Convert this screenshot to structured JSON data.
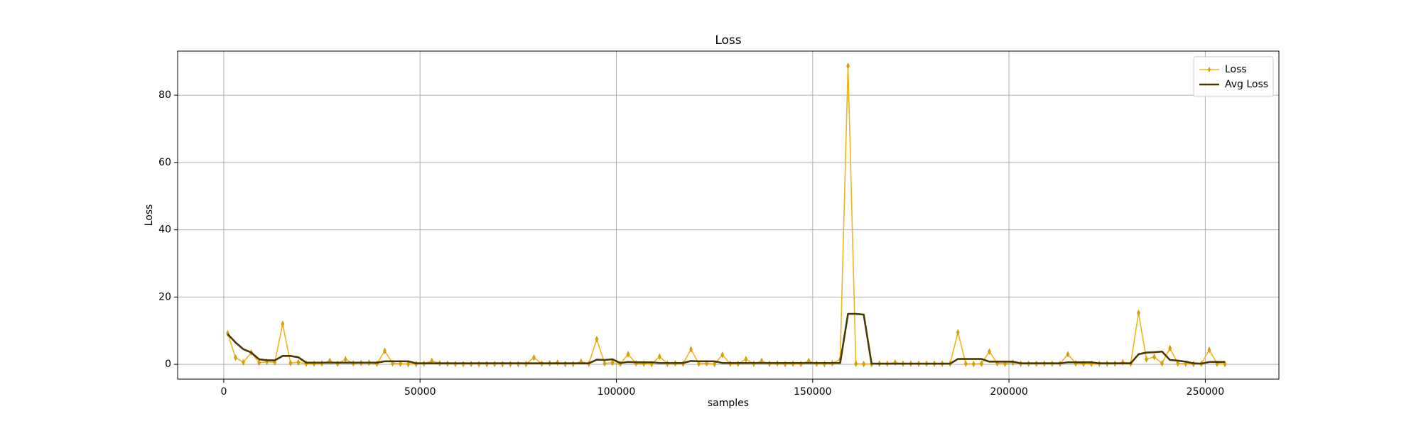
{
  "chart_data": {
    "type": "line",
    "title": "Loss",
    "xlabel": "samples",
    "ylabel": "Loss",
    "x": [
      1000,
      3000,
      5000,
      7000,
      9000,
      11000,
      13000,
      15000,
      17000,
      19000,
      21000,
      23000,
      25000,
      27000,
      29000,
      31000,
      33000,
      35000,
      37000,
      39000,
      41000,
      43000,
      45000,
      47000,
      49000,
      51000,
      53000,
      55000,
      57000,
      59000,
      61000,
      63000,
      65000,
      67000,
      69000,
      71000,
      73000,
      75000,
      77000,
      79000,
      81000,
      83000,
      85000,
      87000,
      89000,
      91000,
      93000,
      95000,
      97000,
      99000,
      101000,
      103000,
      105000,
      107000,
      109000,
      111000,
      113000,
      115000,
      117000,
      119000,
      121000,
      123000,
      125000,
      127000,
      129000,
      131000,
      133000,
      135000,
      137000,
      139000,
      141000,
      143000,
      145000,
      147000,
      149000,
      151000,
      153000,
      155000,
      157000,
      159000,
      161000,
      163000,
      165000,
      167000,
      169000,
      171000,
      173000,
      175000,
      177000,
      179000,
      181000,
      183000,
      185000,
      187000,
      189000,
      191000,
      193000,
      195000,
      197000,
      199000,
      201000,
      203000,
      205000,
      207000,
      209000,
      211000,
      213000,
      215000,
      217000,
      219000,
      221000,
      223000,
      225000,
      227000,
      229000,
      231000,
      233000,
      235000,
      237000,
      239000,
      241000,
      243000,
      245000,
      247000,
      249000,
      251000,
      253000,
      255000
    ],
    "series": [
      {
        "name": "Loss",
        "color": "#f0b41e",
        "marker": true,
        "values": [
          9.2,
          2,
          0.6,
          3.5,
          0.5,
          0.8,
          0.6,
          12,
          0.4,
          0.6,
          0.2,
          0.2,
          0.3,
          1,
          0.2,
          1.5,
          0.3,
          0.4,
          0.5,
          0.2,
          4,
          0.3,
          0.2,
          0.1,
          0.1,
          0.2,
          1,
          0.3,
          0.2,
          0.1,
          0.1,
          0.1,
          0.1,
          0.1,
          0.1,
          0.1,
          0.1,
          0.1,
          0.1,
          2,
          0.2,
          0.3,
          0.5,
          0.1,
          0.1,
          0.8,
          0.2,
          7.5,
          0.3,
          0.5,
          0.2,
          3,
          0.3,
          0.2,
          0.1,
          2.3,
          0.2,
          0.3,
          0.2,
          4.5,
          0.2,
          0.3,
          0.1,
          2.8,
          0.2,
          0.2,
          1.5,
          0.2,
          1,
          0.2,
          0.3,
          0.1,
          0.2,
          0.1,
          1,
          0.2,
          0.1,
          0.3,
          1.5,
          88.7,
          0.2,
          0.1,
          0.1,
          0.2,
          0.2,
          0.5,
          0.2,
          0.2,
          0.2,
          0.2,
          0.2,
          0.2,
          0.2,
          9.5,
          0.2,
          0.1,
          0.2,
          3.8,
          0.3,
          0.2,
          0.5,
          0.2,
          0.2,
          0.2,
          0.2,
          0.2,
          0.2,
          3,
          0.3,
          0.2,
          0.2,
          0.2,
          0.2,
          0.2,
          0.6,
          0.2,
          15.3,
          1.5,
          2.2,
          0.3,
          4.8,
          0.3,
          0.2,
          0.1,
          0.2,
          4.3,
          0.2,
          0.1
        ]
      },
      {
        "name": "Avg Loss",
        "color": "#4a3800",
        "marker": false,
        "values": [
          9,
          6.5,
          4.5,
          3.5,
          1.5,
          1.2,
          1.2,
          2.5,
          2.5,
          2.1,
          0.5,
          0.5,
          0.5,
          0.5,
          0.5,
          0.5,
          0.5,
          0.5,
          0.5,
          0.5,
          0.9,
          0.9,
          0.9,
          0.9,
          0.3,
          0.3,
          0.3,
          0.3,
          0.3,
          0.3,
          0.3,
          0.3,
          0.3,
          0.3,
          0.3,
          0.3,
          0.3,
          0.3,
          0.3,
          0.3,
          0.3,
          0.3,
          0.3,
          0.3,
          0.3,
          0.3,
          0.3,
          1.4,
          1.3,
          1.5,
          0.4,
          0.7,
          0.6,
          0.6,
          0.6,
          0.4,
          0.4,
          0.4,
          0.4,
          1,
          0.9,
          0.9,
          0.9,
          0.4,
          0.4,
          0.4,
          0.4,
          0.4,
          0.4,
          0.4,
          0.4,
          0.4,
          0.4,
          0.4,
          0.4,
          0.4,
          0.4,
          0.4,
          0.4,
          15,
          15,
          14.8,
          0.2,
          0.2,
          0.2,
          0.2,
          0.2,
          0.2,
          0.2,
          0.2,
          0.2,
          0.2,
          0.2,
          1.6,
          1.6,
          1.6,
          1.6,
          0.8,
          0.8,
          0.8,
          0.8,
          0.3,
          0.3,
          0.3,
          0.3,
          0.3,
          0.3,
          0.6,
          0.6,
          0.6,
          0.6,
          0.3,
          0.3,
          0.3,
          0.3,
          0.3,
          3,
          3.5,
          3.6,
          3.8,
          1.3,
          1.1,
          0.8,
          0.3,
          0.2,
          0.7,
          0.7,
          0.7
        ]
      }
    ],
    "xlim": [
      -11750,
      268750
    ],
    "xticks": [
      0,
      50000,
      100000,
      150000,
      200000,
      250000
    ],
    "ylim": [
      -4.4,
      93.1
    ],
    "yticks": [
      0,
      20,
      40,
      60,
      80
    ],
    "grid": true,
    "legend": "upper right"
  }
}
